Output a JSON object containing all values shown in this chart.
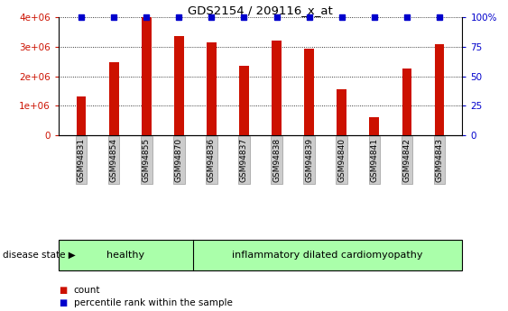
{
  "title": "GDS2154 / 209116_x_at",
  "categories": [
    "GSM94831",
    "GSM94854",
    "GSM94855",
    "GSM94870",
    "GSM94836",
    "GSM94837",
    "GSM94838",
    "GSM94839",
    "GSM94840",
    "GSM94841",
    "GSM94842",
    "GSM94843"
  ],
  "counts": [
    1300000,
    2480000,
    4000000,
    3350000,
    3150000,
    2350000,
    3200000,
    2930000,
    1550000,
    600000,
    2250000,
    3080000
  ],
  "percentiles": [
    100,
    100,
    100,
    100,
    100,
    100,
    100,
    100,
    100,
    100,
    100,
    100
  ],
  "bar_color": "#CC1100",
  "blue_color": "#0000CC",
  "ylim_left": [
    0,
    4000000
  ],
  "ylim_right": [
    0,
    100
  ],
  "yticks_left": [
    0,
    1000000,
    2000000,
    3000000,
    4000000
  ],
  "ytick_labels_left": [
    "0",
    "1e+06",
    "2e+06",
    "3e+06",
    "4e+06"
  ],
  "yticks_right": [
    0,
    25,
    50,
    75,
    100
  ],
  "ytick_labels_right": [
    "0",
    "25",
    "50",
    "75",
    "100%"
  ],
  "n_healthy": 4,
  "n_disease": 8,
  "healthy_label": "healthy",
  "disease_label": "inflammatory dilated cardiomyopathy",
  "disease_state_label": "disease state",
  "legend_count_label": "count",
  "legend_pct_label": "percentile rank within the sample",
  "healthy_color": "#AAFFAA",
  "disease_color": "#AAFFAA",
  "bg_color": "#FFFFFF",
  "tick_label_bg": "#CCCCCC",
  "tick_label_edge": "#999999",
  "bar_width": 0.3
}
